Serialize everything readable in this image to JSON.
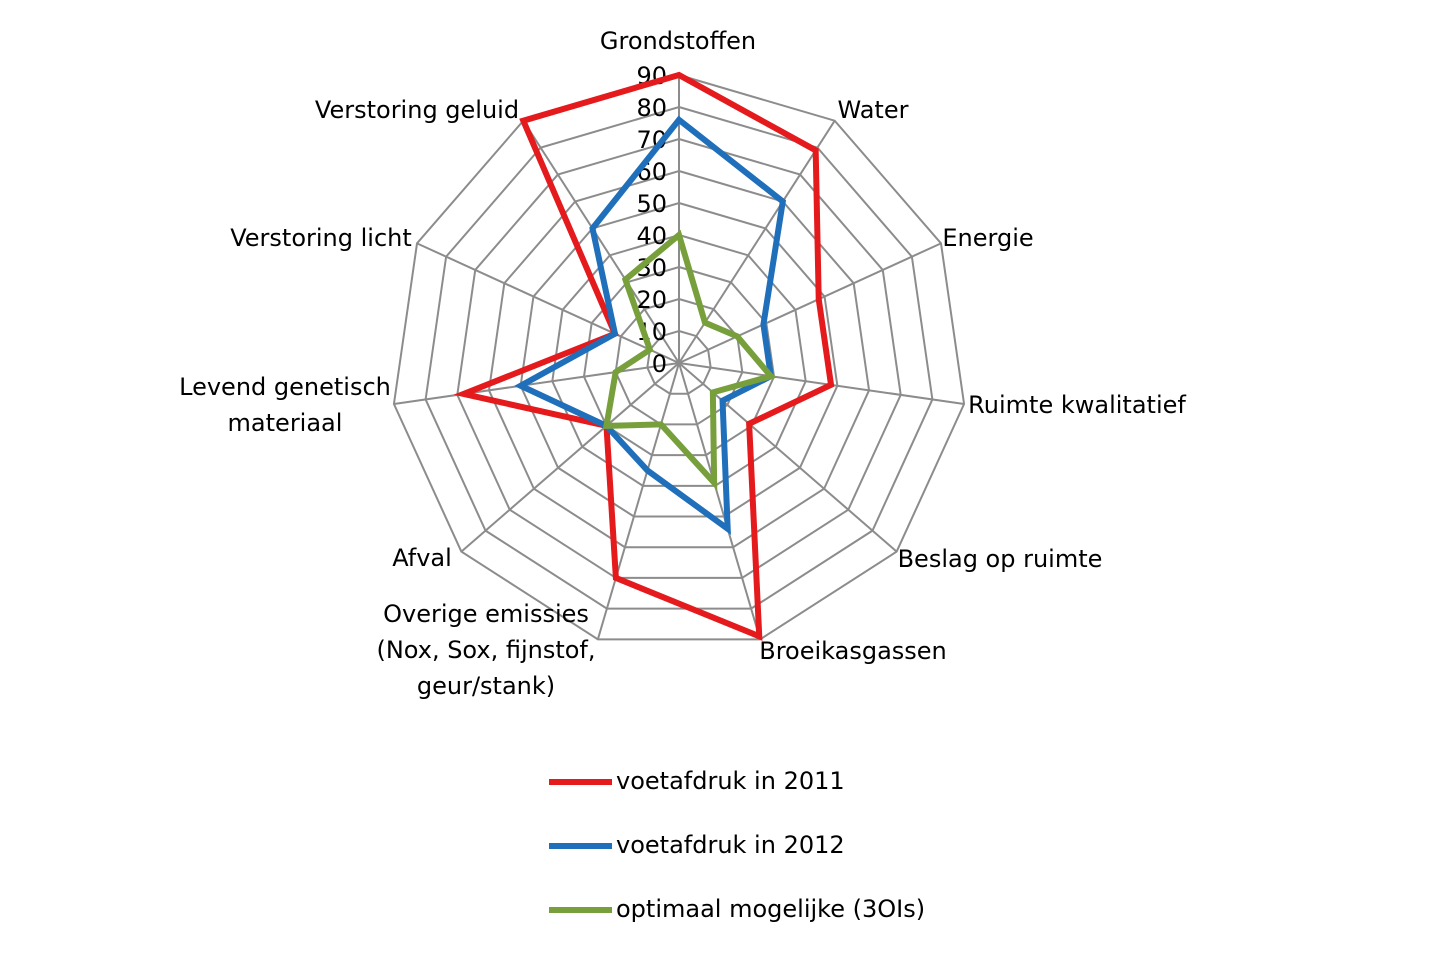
{
  "chart_data": {
    "type": "radar",
    "categories": [
      "Grondstoffen",
      "Water",
      "Energie",
      "Ruimte kwalitatief",
      "Beslag op ruimte",
      "Broeikasgassen",
      "Overige emissies\n(Nox, Sox, fijnstof,\ngeur/stank)",
      "Afval",
      "Levend genetisch\nmateriaal",
      "Verstoring licht",
      "Verstoring geluid"
    ],
    "series": [
      {
        "name": "voetafdruk in 2011",
        "color": "#e41a1c",
        "values": [
          90,
          79,
          48,
          48,
          29,
          89,
          70,
          30,
          68,
          22,
          90
        ]
      },
      {
        "name": "voetafdruk in 2012",
        "color": "#1f6fba",
        "values": [
          76,
          60,
          29,
          29,
          18,
          54,
          35,
          30,
          50,
          22,
          50
        ]
      },
      {
        "name": "optimaal mogelijke (3OIs)",
        "color": "#77a03c",
        "values": [
          40,
          15,
          20,
          29,
          14,
          39,
          20,
          30,
          20,
          10,
          31
        ]
      }
    ],
    "ylim": [
      0,
      90
    ],
    "yticks": [
      0,
      10,
      20,
      30,
      40,
      50,
      60,
      70,
      80,
      90
    ],
    "grid": true,
    "legend": "bottom"
  }
}
